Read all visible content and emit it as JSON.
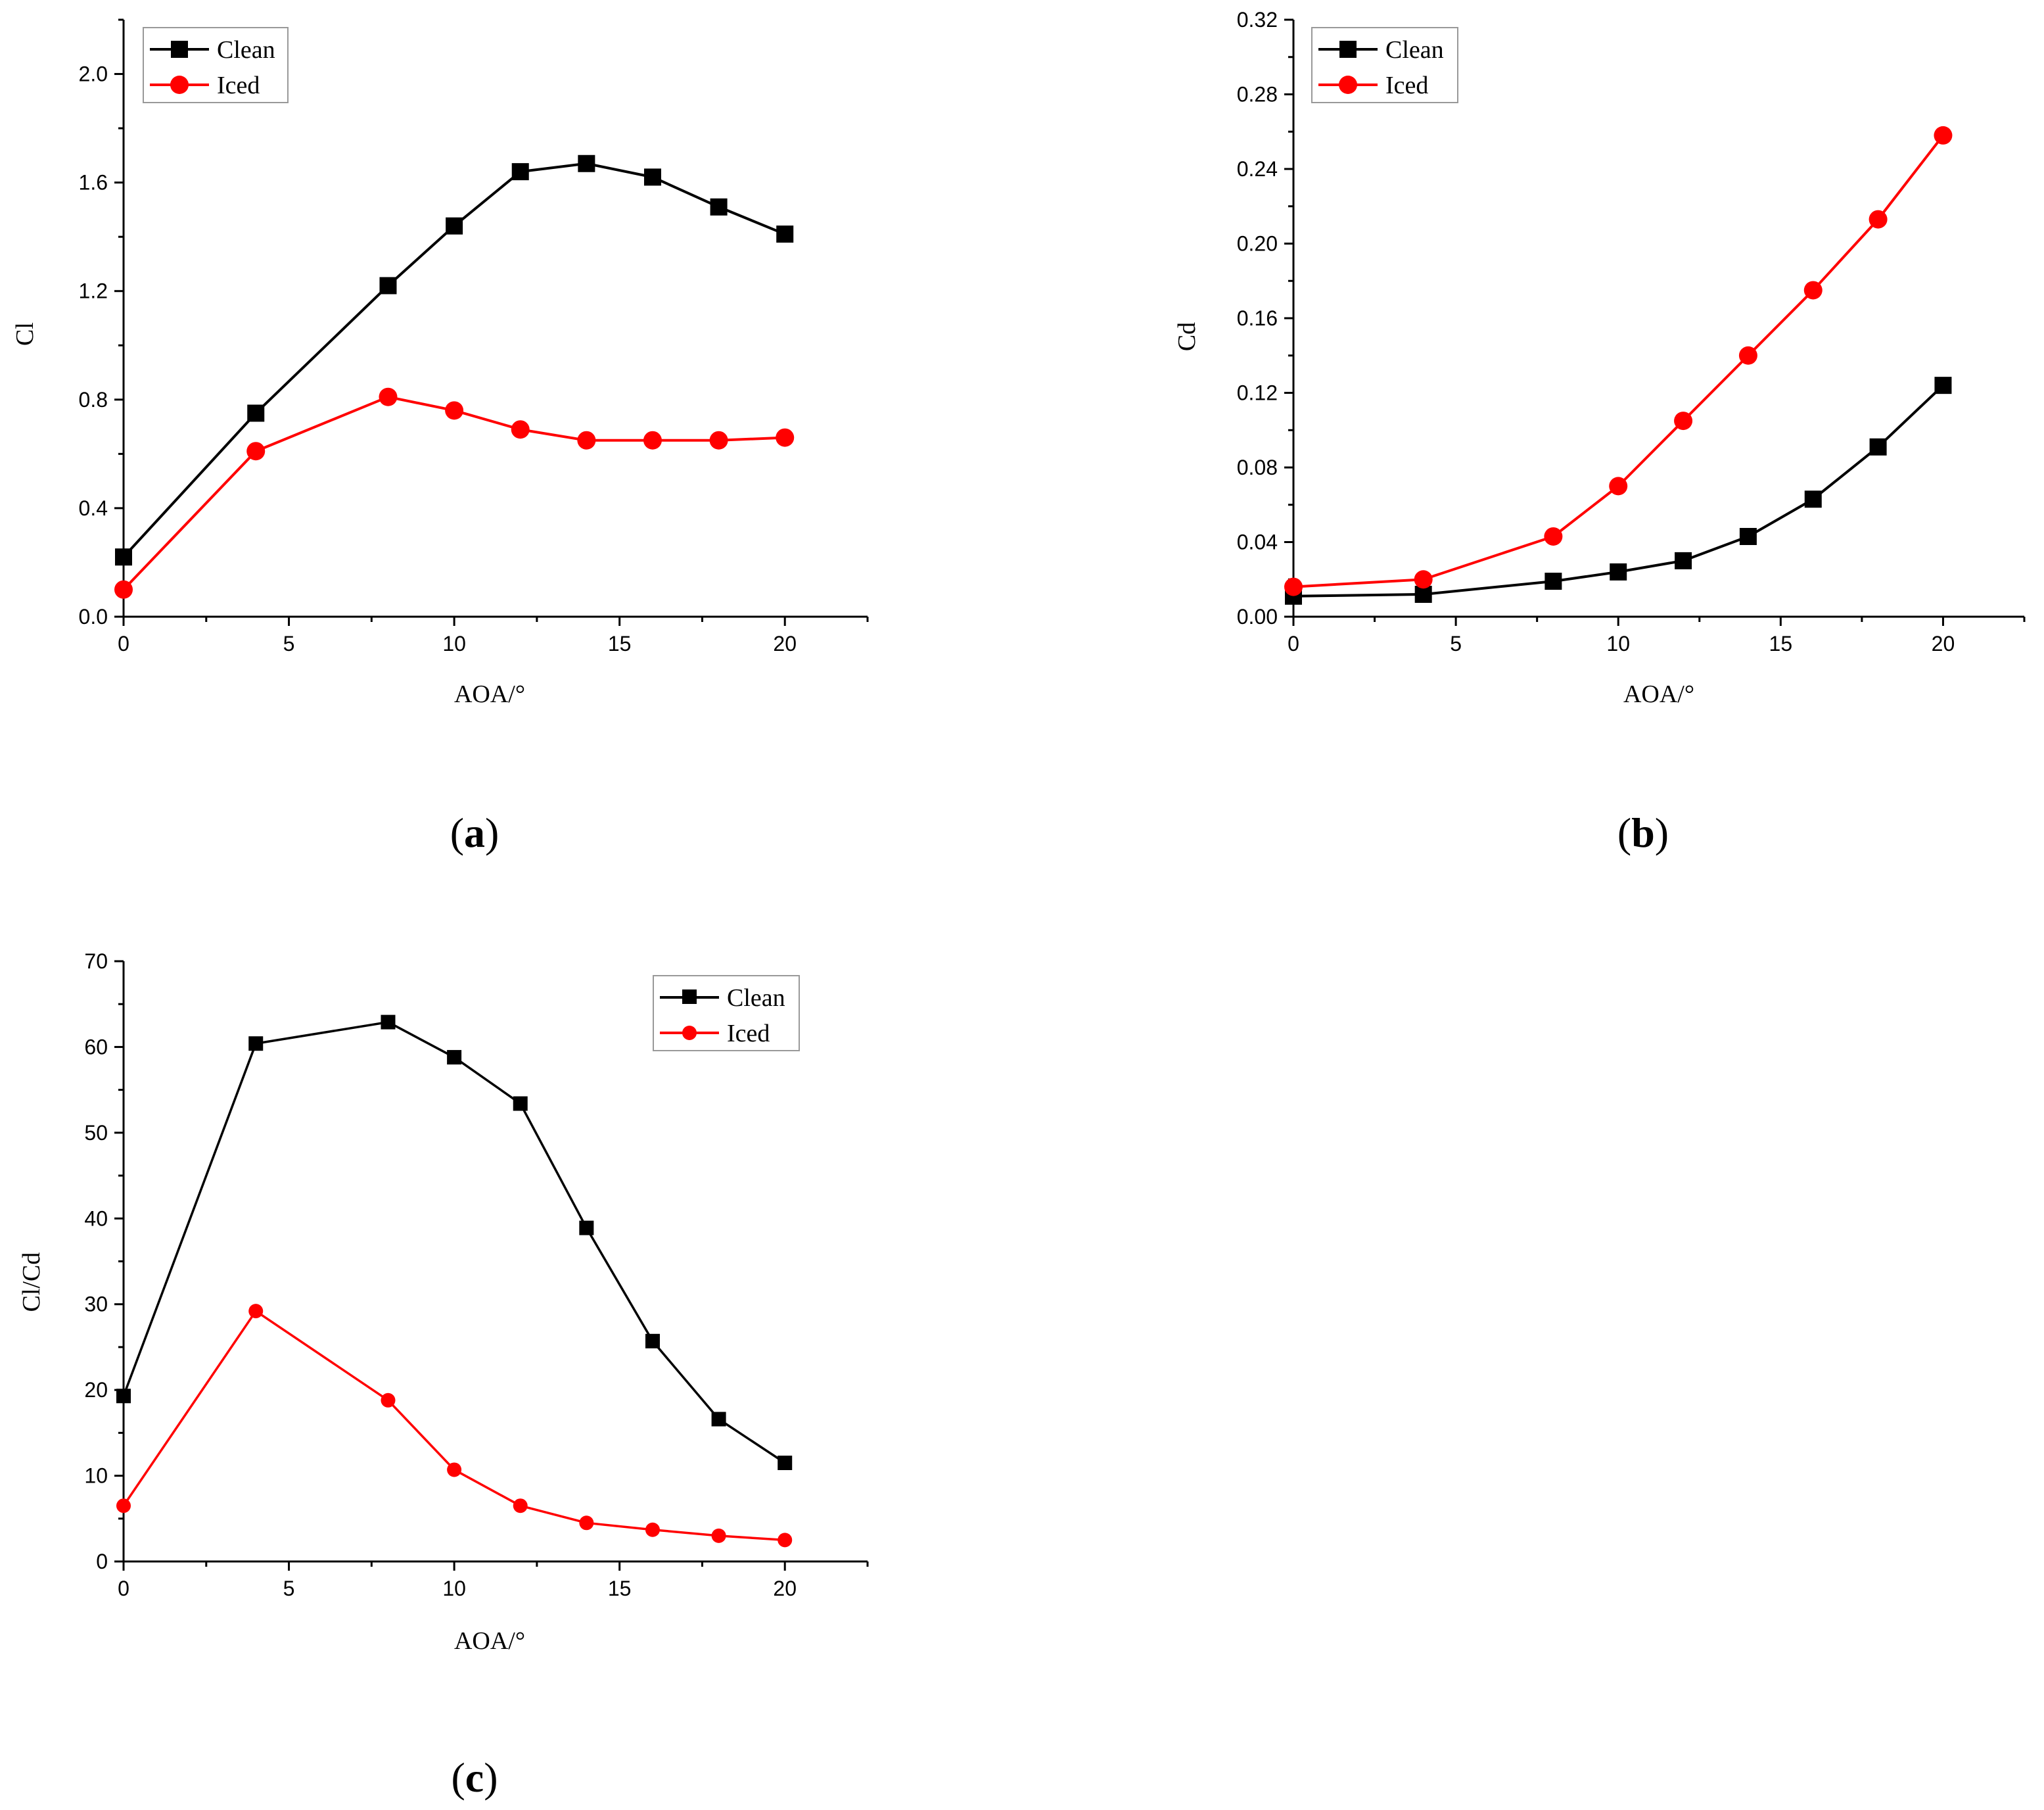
{
  "chart_data": [
    {
      "type": "line",
      "caption_letter": "a",
      "xlabel": "AOA/°",
      "ylabel": "Cl",
      "xlim": [
        0,
        22.5
      ],
      "ylim": [
        0,
        2.2
      ],
      "xticks": [
        "0",
        "5",
        "10",
        "15",
        "20"
      ],
      "xtick_values": [
        0,
        5,
        10,
        15,
        20
      ],
      "yticks": [
        "0.0",
        "0.4",
        "0.8",
        "1.2",
        "1.6",
        "2.0"
      ],
      "ytick_values": [
        0,
        0.4,
        0.8,
        1.2,
        1.6,
        2.0
      ],
      "legend_position": "top-left",
      "series": [
        {
          "name": "Clean",
          "color": "#000000",
          "marker": "square",
          "x": [
            0,
            4,
            8,
            10,
            12,
            14,
            16,
            18,
            20
          ],
          "y": [
            0.22,
            0.75,
            1.22,
            1.44,
            1.64,
            1.67,
            1.62,
            1.51,
            1.41
          ]
        },
        {
          "name": "Iced",
          "color": "#ff0000",
          "marker": "circle",
          "x": [
            0,
            4,
            8,
            10,
            12,
            14,
            16,
            18,
            20
          ],
          "y": [
            0.1,
            0.61,
            0.81,
            0.76,
            0.69,
            0.65,
            0.65,
            0.65,
            0.66
          ]
        }
      ]
    },
    {
      "type": "line",
      "caption_letter": "b",
      "xlabel": "AOA/°",
      "ylabel": "Cd",
      "xlim": [
        0,
        22.5
      ],
      "ylim": [
        0,
        0.32
      ],
      "xticks": [
        "0",
        "5",
        "10",
        "15",
        "20"
      ],
      "xtick_values": [
        0,
        5,
        10,
        15,
        20
      ],
      "yticks": [
        "0.00",
        "0.04",
        "0.08",
        "0.12",
        "0.16",
        "0.20",
        "0.24",
        "0.28",
        "0.32"
      ],
      "ytick_values": [
        0,
        0.04,
        0.08,
        0.12,
        0.16,
        0.2,
        0.24,
        0.28,
        0.32
      ],
      "legend_position": "top-left",
      "series": [
        {
          "name": "Clean",
          "color": "#000000",
          "marker": "square",
          "x": [
            0,
            4,
            8,
            10,
            12,
            14,
            16,
            18,
            20
          ],
          "y": [
            0.011,
            0.012,
            0.019,
            0.024,
            0.03,
            0.043,
            0.063,
            0.091,
            0.124
          ]
        },
        {
          "name": "Iced",
          "color": "#ff0000",
          "marker": "circle",
          "x": [
            0,
            4,
            8,
            10,
            12,
            14,
            16,
            18,
            20
          ],
          "y": [
            0.016,
            0.02,
            0.043,
            0.07,
            0.105,
            0.14,
            0.175,
            0.213,
            0.258
          ]
        }
      ]
    },
    {
      "type": "line",
      "caption_letter": "c",
      "xlabel": "AOA/°",
      "ylabel": "Cl/Cd",
      "xlim": [
        0,
        22.5
      ],
      "ylim": [
        0,
        70
      ],
      "xticks": [
        "0",
        "5",
        "10",
        "15",
        "20"
      ],
      "xtick_values": [
        0,
        5,
        10,
        15,
        20
      ],
      "yticks": [
        "0",
        "10",
        "20",
        "30",
        "40",
        "50",
        "60",
        "70"
      ],
      "ytick_values": [
        0,
        10,
        20,
        30,
        40,
        50,
        60,
        70
      ],
      "legend_position": "top-right",
      "series": [
        {
          "name": "Clean",
          "color": "#000000",
          "marker": "square",
          "x": [
            0,
            4,
            8,
            10,
            12,
            14,
            16,
            18,
            20
          ],
          "y": [
            19.3,
            60.4,
            62.9,
            58.8,
            53.4,
            38.9,
            25.7,
            16.6,
            11.5
          ]
        },
        {
          "name": "Iced",
          "color": "#ff0000",
          "marker": "circle",
          "x": [
            0,
            4,
            8,
            10,
            12,
            14,
            16,
            18,
            20
          ],
          "y": [
            6.5,
            29.2,
            18.8,
            10.7,
            6.5,
            4.5,
            3.7,
            3.0,
            2.5
          ]
        }
      ]
    }
  ]
}
